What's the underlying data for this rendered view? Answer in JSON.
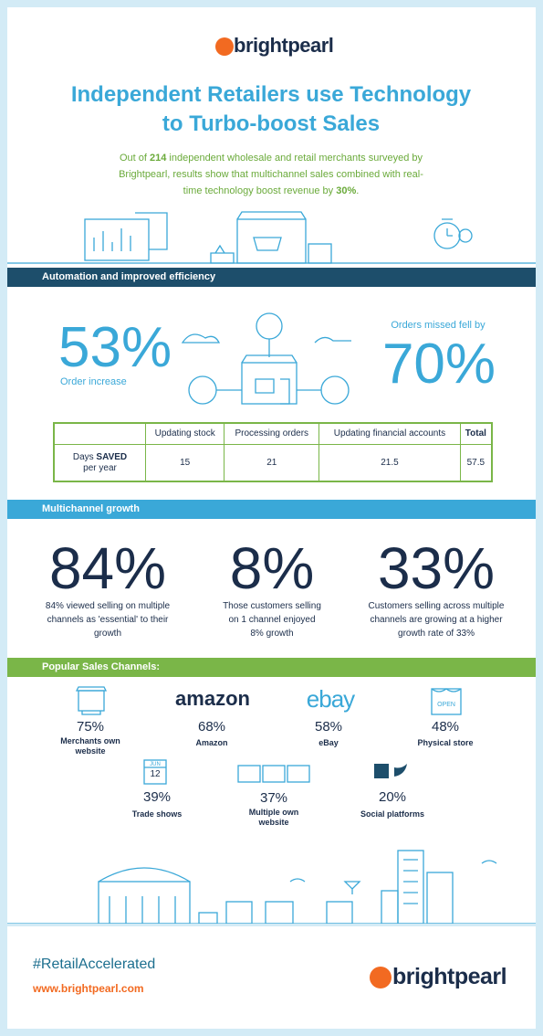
{
  "header": {
    "logo": "brightpearl",
    "title": [
      "Independent Retailers use Technology",
      "to Turbo-boost Sales"
    ],
    "intro": {
      "before": "Out of ",
      "count": "214",
      "middle": " independent wholesale and retail merchants surveyed by Brightpearl, results show that multichannel sales combined with real-time technology boost revenue by ",
      "percent": "30%",
      "after": "."
    }
  },
  "automation": {
    "heading": "Automation and improved efficiency",
    "left": {
      "value": "53%",
      "label": "Order increase"
    },
    "right": {
      "label": "Orders missed fell by",
      "value": "70%"
    },
    "table": {
      "header": [
        "Updating stock",
        "Processing orders",
        "Updating financial accounts",
        "Total"
      ],
      "row": {
        "label_before": "Days ",
        "label_bold": "SAVED",
        "label_after": "per year",
        "values": [
          "15",
          "21",
          "21.5",
          "57.5"
        ]
      }
    }
  },
  "multichannel": {
    "heading": "Multichannel growth",
    "stats": [
      {
        "value": "84%",
        "text": "84% viewed selling on multiple channels as 'essential' to their growth"
      },
      {
        "value": "8%",
        "text": "Those customers selling on 1 channel enjoyed 8% growth"
      },
      {
        "value": "33%",
        "text": "Customers selling across multiple channels are growing at a higher growth rate of 33%"
      }
    ]
  },
  "channels": {
    "heading": "Popular Sales Channels:",
    "items": [
      {
        "value": "75%",
        "label": "Merchants own website"
      },
      {
        "value": "68%",
        "label": "Amazon",
        "logo": "amazon"
      },
      {
        "value": "58%",
        "label": "eBay",
        "logo": "ebay"
      },
      {
        "value": "48%",
        "label": "Physical store",
        "sign": "OPEN"
      },
      {
        "value": "39%",
        "label": "Trade shows",
        "month": "JUN",
        "day": "12"
      },
      {
        "value": "37%",
        "label": "Multiple own website"
      },
      {
        "value": "20%",
        "label": "Social platforms"
      }
    ]
  },
  "footer": {
    "hashtag": "#RetailAccelerated",
    "url": "www.brightpearl.com",
    "logo": "brightpearl"
  }
}
